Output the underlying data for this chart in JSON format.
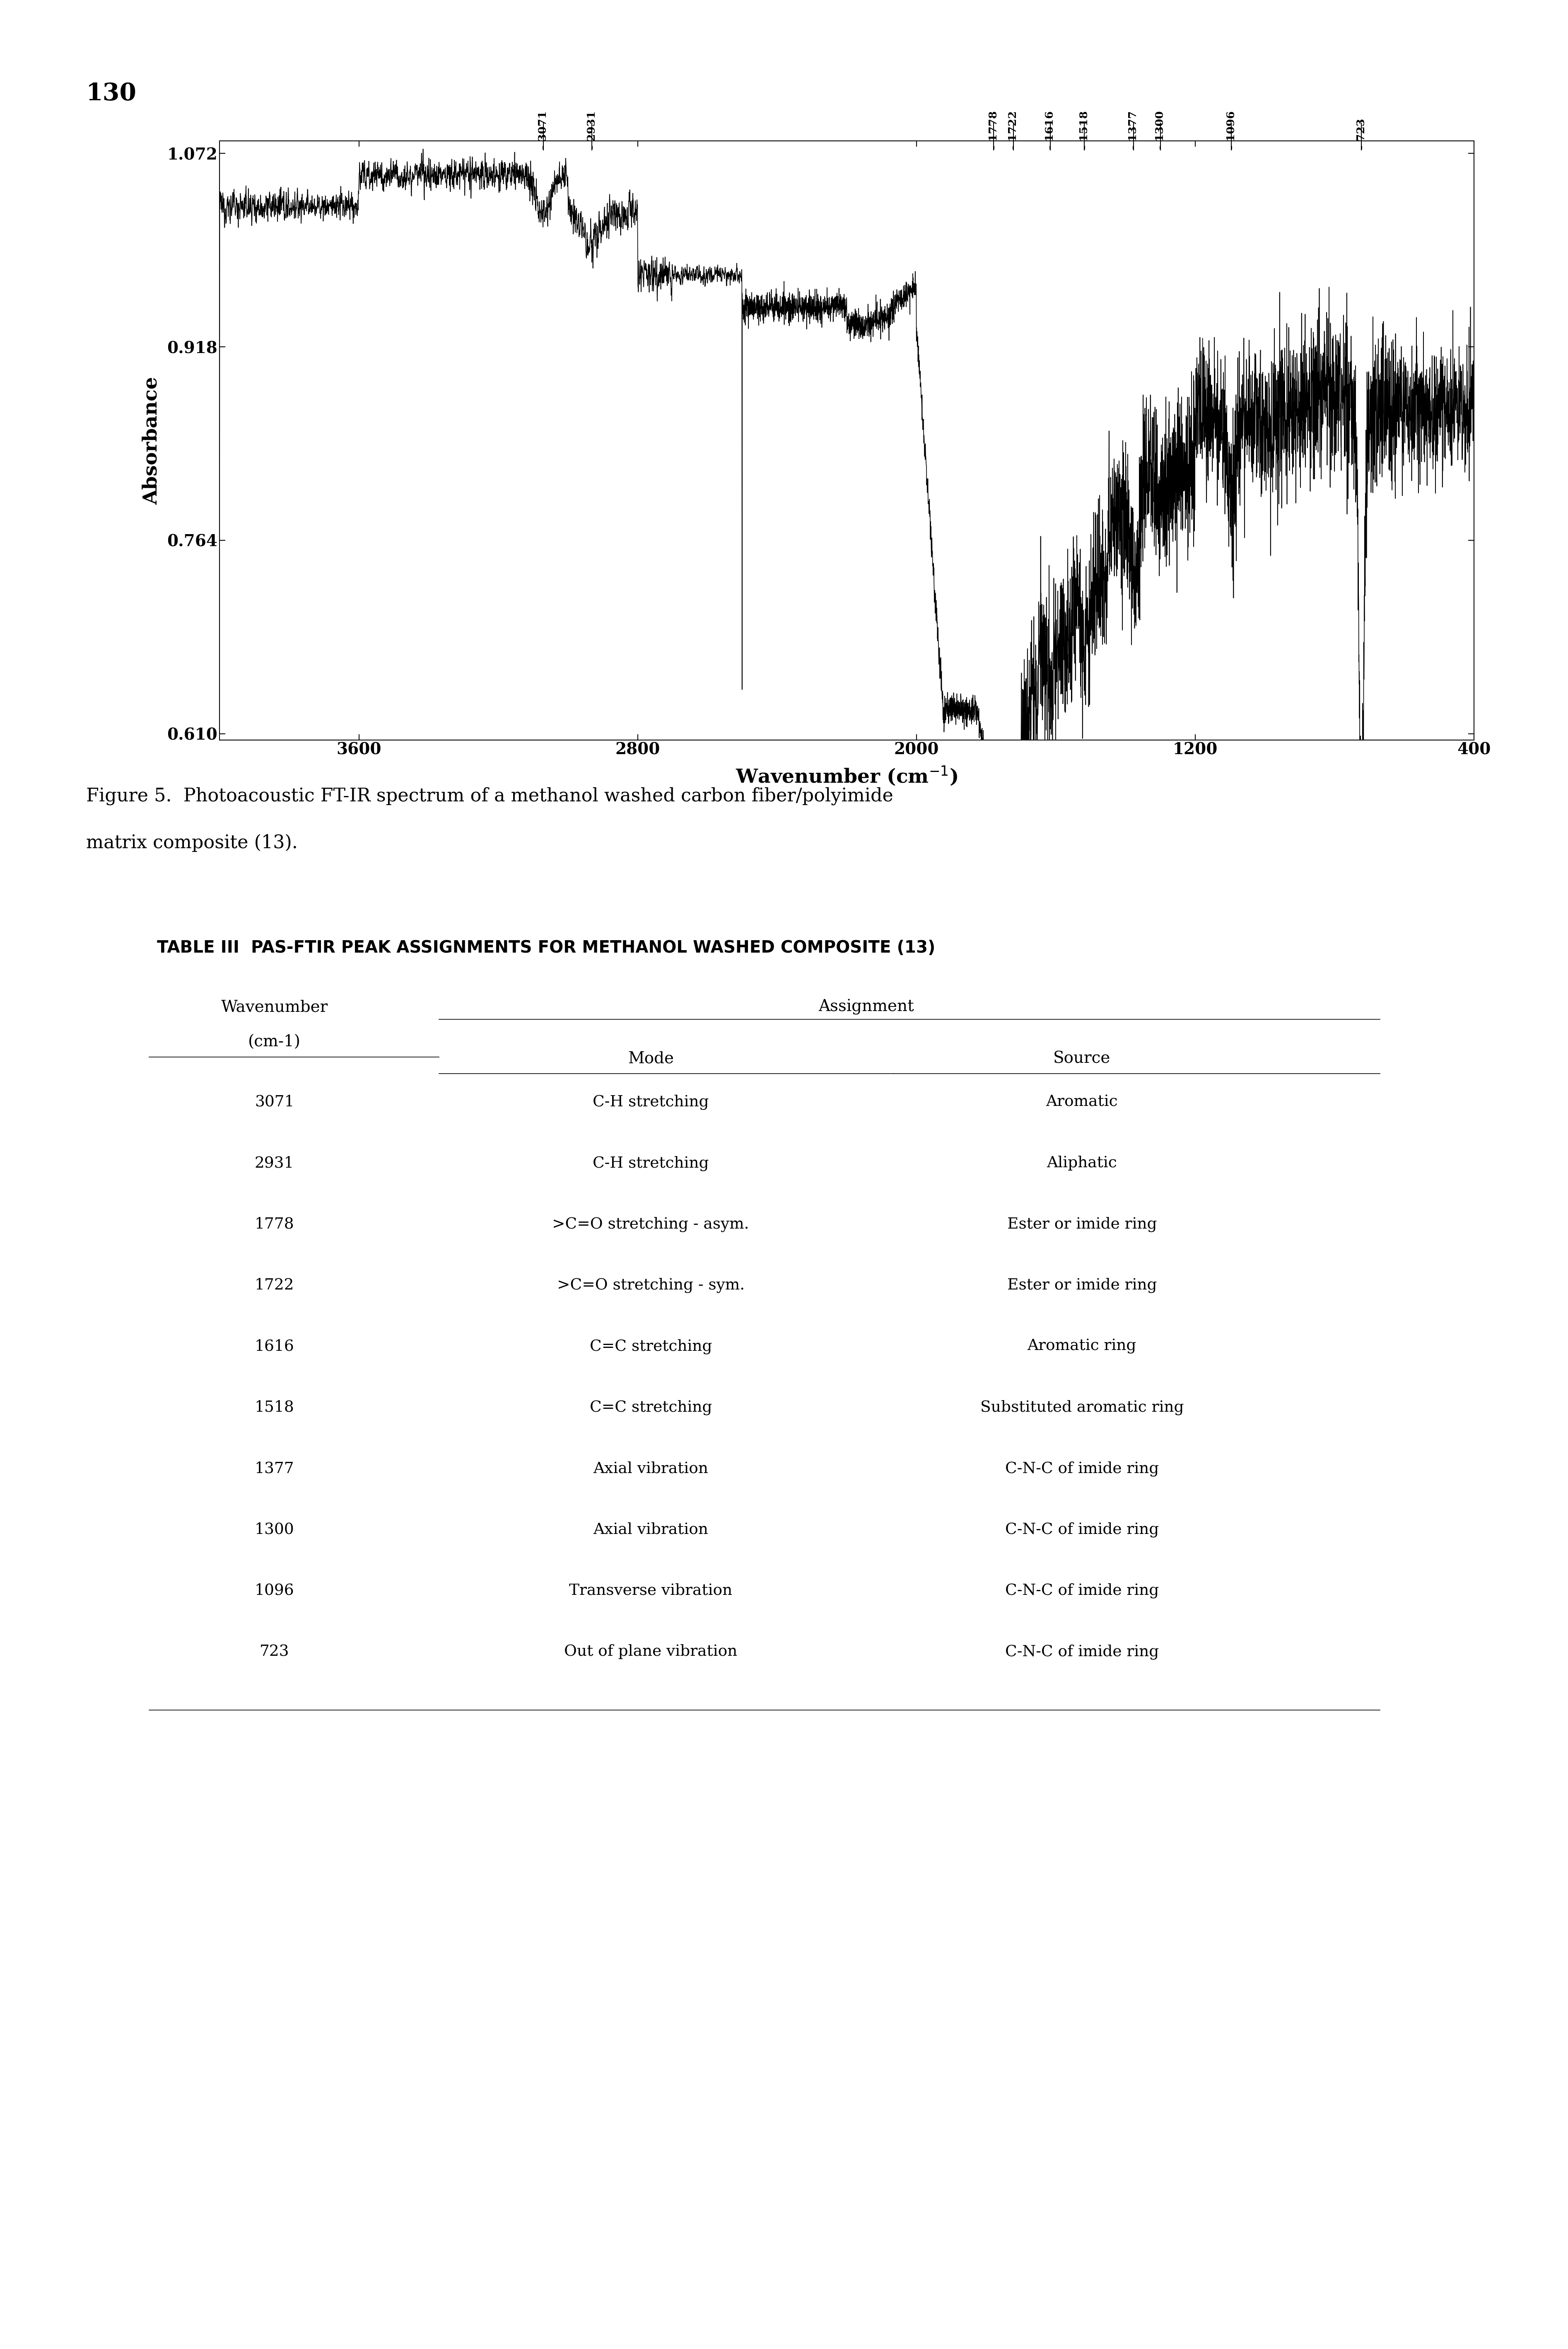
{
  "page_number": "130",
  "figure_caption_line1": "Figure 5.  Photoacoustic FT-IR spectrum of a methanol washed carbon fiber/polyimide",
  "figure_caption_line2": "matrix composite (13).",
  "table_title": "TABLE III  PAS-FTIR PEAK ASSIGNMENTS FOR METHANOL WASHED COMPOSITE (13)",
  "table_data": [
    [
      "3071",
      "C-H stretching",
      "Aromatic"
    ],
    [
      "2931",
      "C-H stretching",
      "Aliphatic"
    ],
    [
      "1778",
      ">C=O stretching - asym.",
      "Ester or imide ring"
    ],
    [
      "1722",
      ">C=O stretching - sym.",
      "Ester or imide ring"
    ],
    [
      "1616",
      "C=C stretching",
      "Aromatic ring"
    ],
    [
      "1518",
      "C=C stretching",
      "Substituted aromatic ring"
    ],
    [
      "1377",
      "Axial vibration",
      "C-N-C of imide ring"
    ],
    [
      "1300",
      "Axial vibration",
      "C-N-C of imide ring"
    ],
    [
      "1096",
      "Transverse vibration",
      "C-N-C of imide ring"
    ],
    [
      "723",
      "Out of plane vibration",
      "C-N-C of imide ring"
    ]
  ],
  "xmin": 4000,
  "xmax": 400,
  "ymin": 0.61,
  "ymax": 1.072,
  "ytick_vals": [
    0.61,
    0.764,
    0.918,
    1.072
  ],
  "ytick_labels": [
    "0.610",
    "0.764",
    "0.918",
    "1.072"
  ],
  "xtick_vals": [
    3600,
    2800,
    2000,
    1200,
    400
  ],
  "xtick_labels": [
    "3600",
    "2800",
    "2000",
    "1200",
    "400"
  ],
  "xlabel": "Wavenumber (cm-1)",
  "ylabel": "Absorbance",
  "peak_labels": [
    3071,
    2931,
    1778,
    1722,
    1616,
    1518,
    1377,
    1300,
    1096,
    723
  ]
}
